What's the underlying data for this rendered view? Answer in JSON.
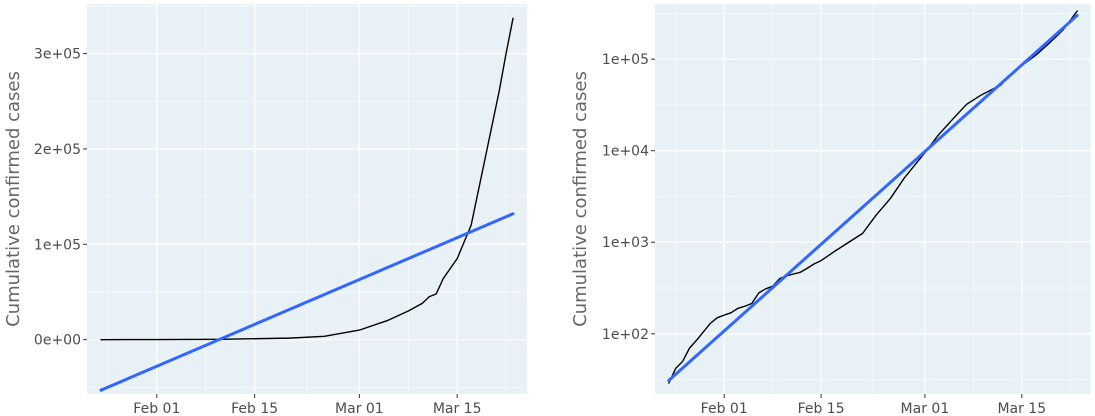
{
  "colors": {
    "panel_bg": "#e8f1f5",
    "grid": "#ffffff",
    "data_line": "#000000",
    "fit_line": "#3366ff",
    "text": "#4d4d4d"
  },
  "chart_data": [
    {
      "type": "line",
      "scale": "linear",
      "ylabel": "Cumulative confirmed cases",
      "xlim": [
        "2020-01-22",
        "2020-03-25"
      ],
      "ylim": [
        -57000,
        352000
      ],
      "x_ticks": [
        {
          "date": "2020-02-01",
          "label": "Feb 01"
        },
        {
          "date": "2020-02-15",
          "label": "Feb 15"
        },
        {
          "date": "2020-03-01",
          "label": "Mar 01"
        },
        {
          "date": "2020-03-15",
          "label": "Mar 15"
        }
      ],
      "y_ticks": [
        {
          "value": 0,
          "label": "0e+00"
        },
        {
          "value": 100000,
          "label": "1e+05"
        },
        {
          "value": 200000,
          "label": "2e+05"
        },
        {
          "value": 300000,
          "label": "3e+05"
        }
      ],
      "series": [
        {
          "role": "data",
          "x": [
            "2020-01-24",
            "2020-02-01",
            "2020-02-10",
            "2020-02-20",
            "2020-02-25",
            "2020-03-01",
            "2020-03-05",
            "2020-03-08",
            "2020-03-10",
            "2020-03-11",
            "2020-03-12",
            "2020-03-13",
            "2020-03-15",
            "2020-03-17",
            "2020-03-19",
            "2020-03-21",
            "2020-03-22",
            "2020-03-23"
          ],
          "y": [
            0,
            100,
            300,
            1600,
            3500,
            10000,
            20000,
            30000,
            38000,
            45000,
            48000,
            64000,
            85000,
            120000,
            190000,
            260000,
            300000,
            337000
          ]
        },
        {
          "role": "fit",
          "x": [
            "2020-01-24",
            "2020-03-23"
          ],
          "y": [
            -53000,
            132000
          ]
        }
      ]
    },
    {
      "type": "line",
      "scale": "log",
      "ylabel": "Cumulative confirmed cases",
      "xlim": [
        "2020-01-22",
        "2020-03-25"
      ],
      "ylim": [
        22,
        400000
      ],
      "x_ticks": [
        {
          "date": "2020-02-01",
          "label": "Feb 01"
        },
        {
          "date": "2020-02-15",
          "label": "Feb 15"
        },
        {
          "date": "2020-03-01",
          "label": "Mar 01"
        },
        {
          "date": "2020-03-15",
          "label": "Mar 15"
        }
      ],
      "y_ticks": [
        {
          "value": 100,
          "label": "1e+02"
        },
        {
          "value": 1000,
          "label": "1e+03"
        },
        {
          "value": 10000,
          "label": "1e+04"
        },
        {
          "value": 100000,
          "label": "1e+05"
        }
      ],
      "series": [
        {
          "role": "data",
          "x": [
            "2020-01-24",
            "2020-01-25",
            "2020-01-26",
            "2020-01-27",
            "2020-01-28",
            "2020-01-29",
            "2020-01-30",
            "2020-01-31",
            "2020-02-01",
            "2020-02-02",
            "2020-02-03",
            "2020-02-04",
            "2020-02-05",
            "2020-02-06",
            "2020-02-07",
            "2020-02-08",
            "2020-02-09",
            "2020-02-10",
            "2020-02-11",
            "2020-02-12",
            "2020-02-13",
            "2020-02-14",
            "2020-02-15",
            "2020-02-17",
            "2020-02-19",
            "2020-02-21",
            "2020-02-23",
            "2020-02-25",
            "2020-02-27",
            "2020-03-01",
            "2020-03-03",
            "2020-03-05",
            "2020-03-07",
            "2020-03-09",
            "2020-03-11",
            "2020-03-12",
            "2020-03-13",
            "2020-03-15",
            "2020-03-17",
            "2020-03-19",
            "2020-03-21",
            "2020-03-23"
          ],
          "y": [
            29,
            42,
            50,
            70,
            85,
            105,
            130,
            150,
            160,
            170,
            190,
            200,
            215,
            280,
            310,
            330,
            400,
            430,
            450,
            470,
            520,
            580,
            630,
            800,
            1000,
            1250,
            2000,
            3000,
            5000,
            9500,
            15000,
            22000,
            32000,
            40000,
            48000,
            52000,
            65000,
            85000,
            110000,
            150000,
            210000,
            335000
          ]
        },
        {
          "role": "fit",
          "x": [
            "2020-01-24",
            "2020-03-23"
          ],
          "y": [
            31,
            300000
          ]
        }
      ]
    }
  ]
}
